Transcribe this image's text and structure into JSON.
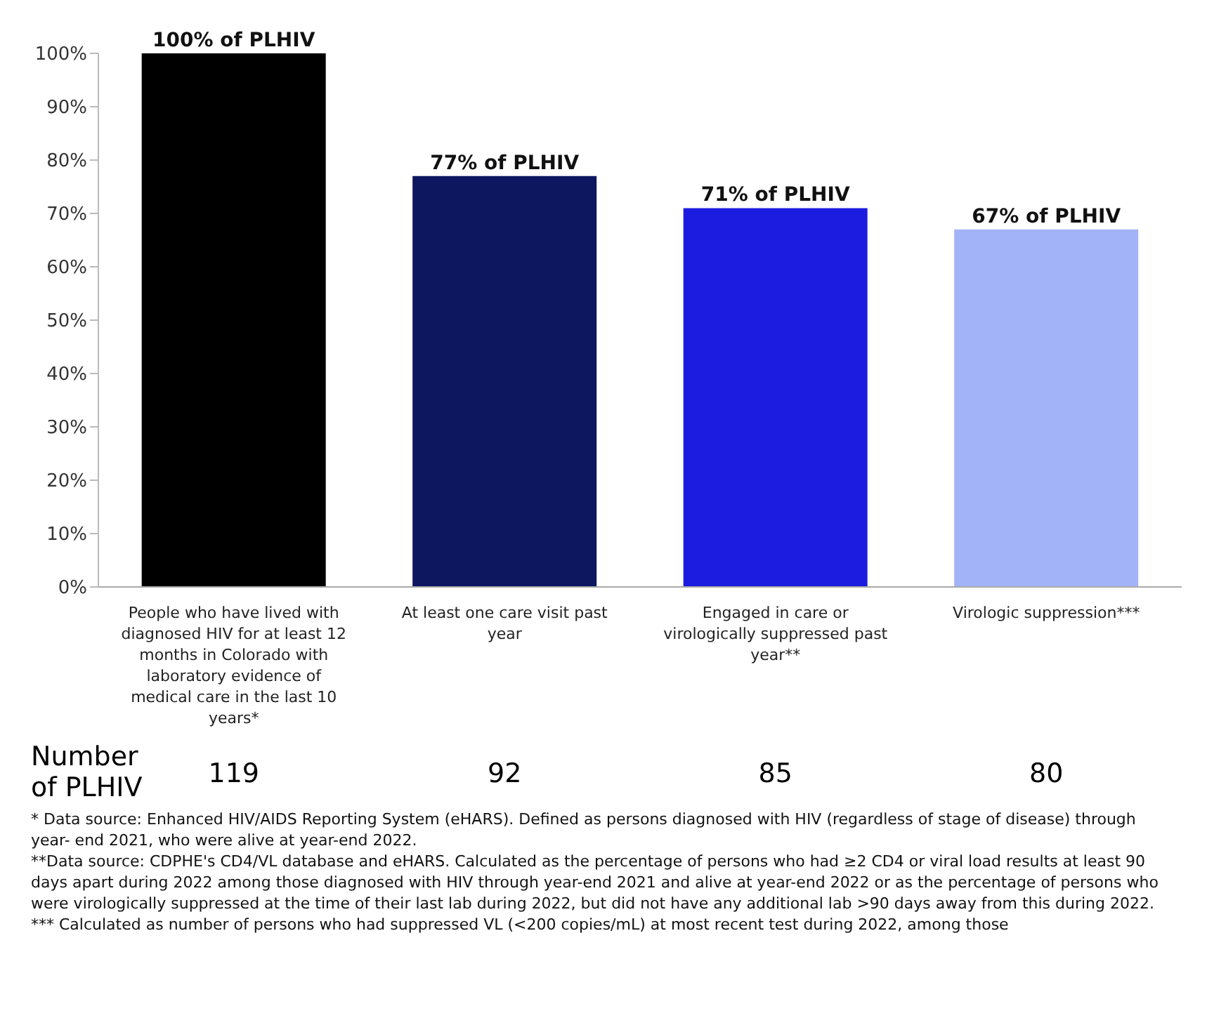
{
  "chart_data": {
    "type": "bar",
    "categories": [
      "People who have lived with diagnosed HIV for at least 12 months in Colorado with laboratory evidence of medical care in the last 10 years*",
      "At least one care visit past year",
      "Engaged in care or virologically suppressed past year**",
      "Virologic suppression***"
    ],
    "values": [
      100,
      77,
      71,
      67
    ],
    "colors": [
      "#000000",
      "#0c1760",
      "#1c1ce0",
      "#a3b3f7"
    ],
    "value_labels": [
      "100% of PLHIV",
      "77% of PLHIV",
      "71% of PLHIV",
      "67% of PLHIV"
    ],
    "ylim": [
      0,
      100
    ],
    "yticks": [
      {
        "value": 0,
        "label": "0%"
      },
      {
        "value": 10,
        "label": "10%"
      },
      {
        "value": 20,
        "label": "20%"
      },
      {
        "value": 30,
        "label": "30%"
      },
      {
        "value": 40,
        "label": "40%"
      },
      {
        "value": 50,
        "label": "50%"
      },
      {
        "value": 60,
        "label": "60%"
      },
      {
        "value": 70,
        "label": "70%"
      },
      {
        "value": 80,
        "label": "80%"
      },
      {
        "value": 90,
        "label": "90%"
      },
      {
        "value": 100,
        "label": "100%"
      }
    ],
    "grid": false,
    "annotations": [
      "Number of PLHIV",
      "119",
      "92",
      "85",
      "80",
      "* Data source: Enhanced HIV/AIDS Reporting System (eHARS). Defined as persons diagnosed with HIV (regardless of stage of disease) through year- end 2021, who were alive at year-end 2022.",
      "**Data source: CDPHE's CD4/VL database and eHARS. Calculated as the percentage of persons who had ≥2 CD4 or viral load results at least 90 days apart during 2022 among those diagnosed with HIV through year-end 2021 and alive at year-end 2022 or as the percentage of persons who were virologically suppressed at the time of their last lab during 2022, but did not have any additional lab >90 days away from this during 2022.",
      "*** Calculated as number of persons who had suppressed  VL (<200 copies/mL) at most recent test during 2022, among those"
    ]
  }
}
